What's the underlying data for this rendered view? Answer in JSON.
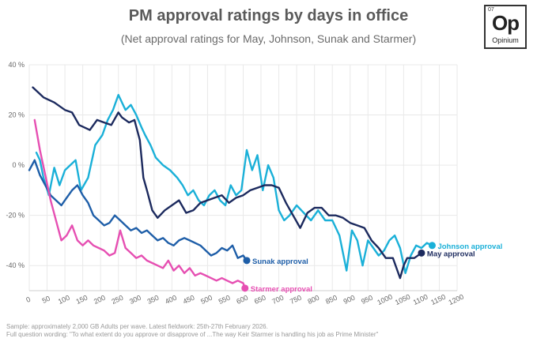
{
  "chart_data": {
    "type": "line",
    "title": "PM approval ratings by days in office",
    "subtitle": "(Net approval ratings for May, Johnson, Sunak and Starmer)",
    "xlim": [
      0,
      1200
    ],
    "ylim": [
      -50,
      40
    ],
    "xticks": [
      "0",
      "50",
      "100",
      "150",
      "200",
      "250",
      "300",
      "350",
      "400",
      "450",
      "500",
      "550",
      "600",
      "650",
      "700",
      "750",
      "800",
      "850",
      "900",
      "950",
      "1000",
      "1050",
      "1100",
      "1150",
      "1200"
    ],
    "yticks": [
      "40 %",
      "20 %",
      "0 %",
      "-20 %",
      "-40 %"
    ],
    "grid": true,
    "series": [
      {
        "name": "May approval",
        "color": "#1c2a5e",
        "x": [
          10,
          40,
          70,
          100,
          120,
          140,
          170,
          190,
          210,
          230,
          250,
          260,
          280,
          295,
          310,
          320,
          330,
          345,
          360,
          380,
          400,
          420,
          440,
          460,
          480,
          500,
          520,
          540,
          560,
          580,
          600,
          620,
          640,
          660,
          680,
          700,
          720,
          740,
          760,
          780,
          800,
          820,
          840,
          860,
          880,
          900,
          920,
          940,
          960,
          980,
          1000,
          1020,
          1040,
          1050,
          1060,
          1080,
          1100
        ],
        "y": [
          31,
          27,
          25,
          22,
          21,
          16,
          14,
          18,
          17,
          16,
          21,
          19,
          17,
          18,
          10,
          -5,
          -10,
          -18,
          -21,
          -18,
          -16,
          -14,
          -19,
          -18,
          -15,
          -14,
          -13,
          -12,
          -15,
          -13,
          -12,
          -10,
          -9,
          -8,
          -8,
          -9,
          -15,
          -20,
          -25,
          -19,
          -17,
          -17,
          -20,
          -20,
          -21,
          -23,
          -24,
          -25,
          -30,
          -33,
          -37,
          -37,
          -45,
          -40,
          -37,
          -37,
          -35
        ]
      },
      {
        "name": "Johnson approval",
        "color": "#1ab0d8",
        "x": [
          20,
          30,
          40,
          55,
          70,
          85,
          100,
          115,
          130,
          145,
          165,
          185,
          205,
          220,
          235,
          250,
          260,
          270,
          285,
          300,
          315,
          325,
          340,
          355,
          375,
          395,
          415,
          430,
          445,
          460,
          475,
          490,
          505,
          520,
          535,
          550,
          565,
          580,
          595,
          610,
          625,
          640,
          655,
          670,
          685,
          700,
          715,
          730,
          750,
          770,
          790,
          810,
          830,
          850,
          870,
          890,
          905,
          920,
          935,
          950,
          965,
          980,
          995,
          1010,
          1025,
          1040,
          1055,
          1070,
          1085,
          1100,
          1115,
          1130
        ],
        "y": [
          5,
          2,
          -5,
          -12,
          -1,
          -8,
          -2,
          0,
          2,
          -10,
          -5,
          8,
          12,
          18,
          22,
          28,
          25,
          22,
          24,
          20,
          15,
          12,
          8,
          3,
          0,
          -2,
          -5,
          -8,
          -12,
          -10,
          -14,
          -16,
          -12,
          -10,
          -14,
          -16,
          -8,
          -12,
          -10,
          6,
          -2,
          4,
          -10,
          0,
          -5,
          -18,
          -22,
          -20,
          -16,
          -19,
          -22,
          -18,
          -22,
          -22,
          -28,
          -42,
          -26,
          -30,
          -40,
          -30,
          -33,
          -36,
          -34,
          -30,
          -28,
          -33,
          -43,
          -36,
          -32,
          -33,
          -31,
          -32
        ]
      },
      {
        "name": "Sunak approval",
        "color": "#1e5ea8",
        "x": [
          0,
          15,
          30,
          45,
          60,
          75,
          90,
          105,
          120,
          135,
          150,
          165,
          180,
          195,
          210,
          225,
          240,
          255,
          270,
          285,
          300,
          315,
          330,
          345,
          360,
          375,
          390,
          405,
          420,
          435,
          450,
          465,
          480,
          495,
          510,
          525,
          540,
          555,
          570,
          585,
          600,
          610
        ],
        "y": [
          -2,
          2,
          -4,
          -8,
          -12,
          -14,
          -16,
          -13,
          -10,
          -8,
          -12,
          -15,
          -20,
          -22,
          -24,
          -23,
          -20,
          -22,
          -24,
          -26,
          -25,
          -27,
          -26,
          -28,
          -30,
          -29,
          -31,
          -32,
          -30,
          -29,
          -30,
          -31,
          -32,
          -34,
          -36,
          -35,
          -33,
          -34,
          -32,
          -37,
          -36,
          -38
        ]
      },
      {
        "name": "Starmer approval",
        "color": "#e64fb2",
        "x": [
          15,
          30,
          45,
          60,
          75,
          90,
          105,
          120,
          135,
          150,
          165,
          180,
          195,
          210,
          225,
          240,
          255,
          270,
          285,
          300,
          315,
          330,
          345,
          360,
          375,
          390,
          405,
          420,
          435,
          450,
          465,
          480,
          495,
          510,
          525,
          540,
          555,
          570,
          585,
          600,
          605
        ],
        "y": [
          18,
          6,
          -4,
          -14,
          -22,
          -30,
          -28,
          -24,
          -30,
          -32,
          -30,
          -32,
          -33,
          -34,
          -36,
          -35,
          -26,
          -33,
          -35,
          -37,
          -36,
          -38,
          -39,
          -40,
          -41,
          -38,
          -42,
          -40,
          -43,
          -41,
          -44,
          -43,
          -44,
          -45,
          -46,
          -45,
          -46,
          -47,
          -46,
          -47,
          -49
        ]
      }
    ]
  },
  "logo": {
    "number": "07",
    "mark": "Op",
    "name": "Opinium"
  },
  "footer": {
    "line1": "Sample: approximately 2,000 GB Adults per wave. Latest fieldwork: 25th-27th February 2026.",
    "line2": "Full question wording: \"To what extent do you approve or disapprove of ...The way Keir Starmer is handling his job as Prime Minister\""
  }
}
